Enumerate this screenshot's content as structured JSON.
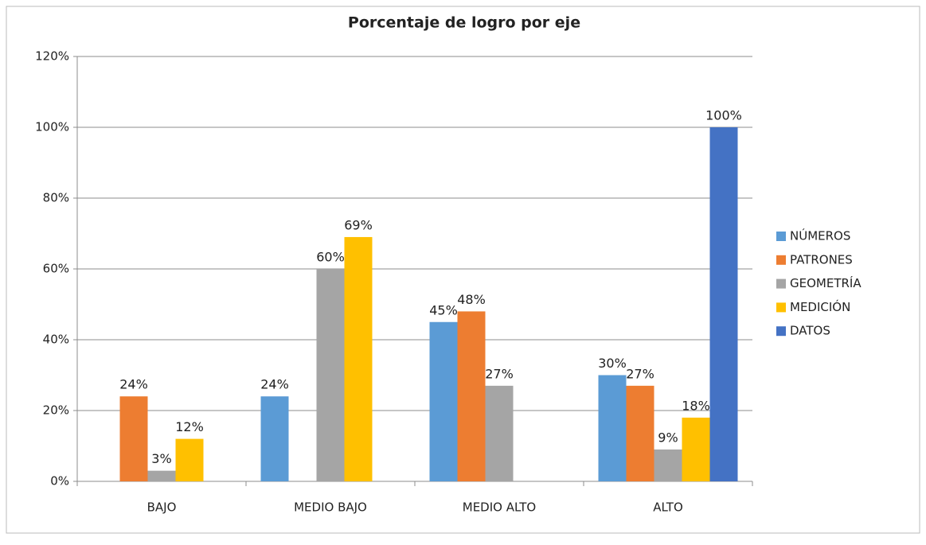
{
  "chart_data": {
    "type": "bar",
    "title": "Porcentaje de logro por eje",
    "categories": [
      "BAJO",
      "MEDIO BAJO",
      "MEDIO ALTO",
      "ALTO"
    ],
    "series": [
      {
        "name": "NÚMEROS",
        "color": "#5b9bd5",
        "values": [
          null,
          24,
          45,
          30
        ],
        "value_labels": [
          null,
          "24%",
          "45%",
          "30%"
        ]
      },
      {
        "name": "PATRONES",
        "color": "#ed7d31",
        "values": [
          24,
          null,
          48,
          27
        ],
        "value_labels": [
          "24%",
          null,
          "48%",
          "27%"
        ]
      },
      {
        "name": "GEOMETRÍA",
        "color": "#a5a5a5",
        "values": [
          3,
          60,
          27,
          9
        ],
        "value_labels": [
          "3%",
          "60%",
          "27%",
          "9%"
        ]
      },
      {
        "name": "MEDICIÓN",
        "color": "#ffc000",
        "values": [
          12,
          69,
          null,
          18
        ],
        "value_labels": [
          "12%",
          "69%",
          null,
          "18%"
        ]
      },
      {
        "name": "DATOS",
        "color": "#4472c4",
        "values": [
          null,
          null,
          null,
          100
        ],
        "value_labels": [
          null,
          null,
          null,
          "100%"
        ]
      }
    ],
    "ylim": [
      0,
      120
    ],
    "yticks": [
      {
        "value": 0,
        "label": "0%"
      },
      {
        "value": 20,
        "label": "20%"
      },
      {
        "value": 40,
        "label": "40%"
      },
      {
        "value": 60,
        "label": "60%"
      },
      {
        "value": 80,
        "label": "80%"
      },
      {
        "value": 100,
        "label": "100%"
      },
      {
        "value": 120,
        "label": "120%"
      }
    ],
    "grid": true,
    "legend": "right"
  }
}
